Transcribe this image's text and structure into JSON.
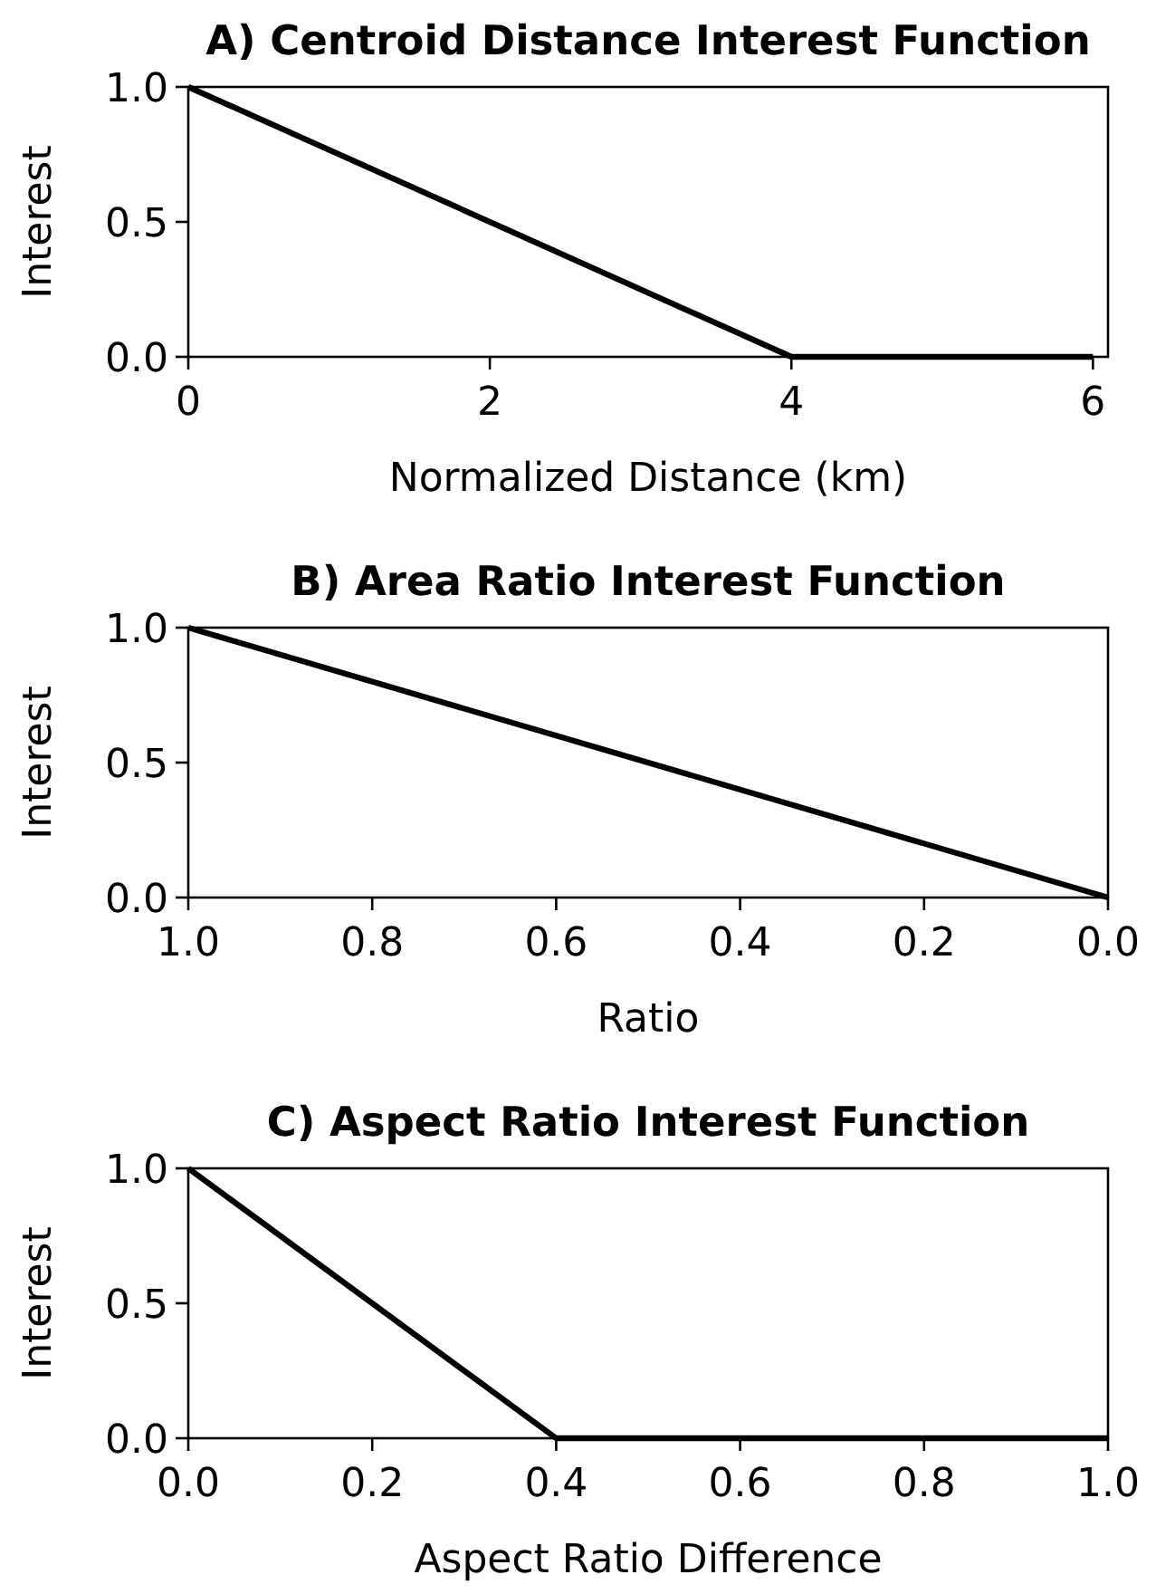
{
  "chart_data": [
    {
      "type": "line",
      "title": "A) Centroid Distance Interest Function",
      "xlabel": "Normalized Distance (km)",
      "ylabel": "Interest",
      "x": [
        0,
        4,
        6
      ],
      "series": [
        {
          "color": "#000000",
          "values": [
            1,
            0,
            0
          ]
        }
      ],
      "xlim": [
        0,
        6.1
      ],
      "xticks": [
        0,
        2,
        4,
        6
      ],
      "ylim": [
        0,
        1
      ],
      "yticks": [
        {
          "value": 0,
          "label": "0.0"
        },
        {
          "value": 0.5,
          "label": "0.5"
        },
        {
          "value": 1,
          "label": "1.0"
        }
      ]
    },
    {
      "type": "line",
      "title": "B) Area Ratio Interest Function",
      "xlabel": "Ratio",
      "ylabel": "Interest",
      "x": [
        1,
        0
      ],
      "series": [
        {
          "color": "#000000",
          "values": [
            1,
            0
          ]
        }
      ],
      "xlim": [
        1,
        0
      ],
      "xticks": [
        {
          "value": 1,
          "label": "1.0"
        },
        {
          "value": 0.8,
          "label": "0.8"
        },
        {
          "value": 0.6,
          "label": "0.6"
        },
        {
          "value": 0.4,
          "label": "0.4"
        },
        {
          "value": 0.2,
          "label": "0.2"
        },
        {
          "value": 0,
          "label": "0.0"
        }
      ],
      "ylim": [
        0,
        1
      ],
      "yticks": [
        {
          "value": 0,
          "label": "0.0"
        },
        {
          "value": 0.5,
          "label": "0.5"
        },
        {
          "value": 1,
          "label": "1.0"
        }
      ]
    },
    {
      "type": "line",
      "title": "C) Aspect Ratio Interest Function",
      "xlabel": "Aspect Ratio Difference",
      "ylabel": "Interest",
      "x": [
        0,
        0.4,
        1
      ],
      "series": [
        {
          "color": "#000000",
          "values": [
            1,
            0,
            0
          ]
        }
      ],
      "xlim": [
        0,
        1
      ],
      "xticks": [
        {
          "value": 0,
          "label": "0.0"
        },
        {
          "value": 0.2,
          "label": "0.2"
        },
        {
          "value": 0.4,
          "label": "0.4"
        },
        {
          "value": 0.6,
          "label": "0.6"
        },
        {
          "value": 0.8,
          "label": "0.8"
        },
        {
          "value": 1,
          "label": "1.0"
        }
      ],
      "ylim": [
        0,
        1
      ],
      "yticks": [
        {
          "value": 0,
          "label": "0.0"
        },
        {
          "value": 0.5,
          "label": "0.5"
        },
        {
          "value": 1,
          "label": "1.0"
        }
      ]
    }
  ]
}
